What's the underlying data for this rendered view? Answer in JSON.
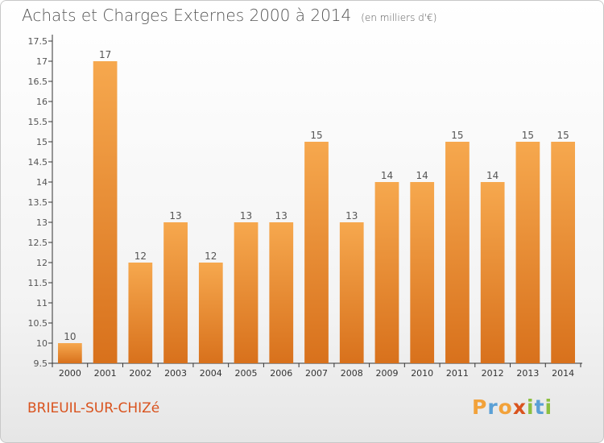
{
  "header": {
    "title": "Achats et Charges Externes 2000 à 2014",
    "unit": "(en milliers d'€)"
  },
  "commune": "BRIEUIL-SUR-CHIZé",
  "logo": {
    "text": "Proxiti",
    "letters": [
      {
        "ch": "P",
        "color": "#f2a23a"
      },
      {
        "ch": "r",
        "color": "#5aa0d6"
      },
      {
        "ch": "o",
        "color": "#f2a23a"
      },
      {
        "ch": "x",
        "color": "#d9531e"
      },
      {
        "ch": "i",
        "color": "#8cbf3f"
      },
      {
        "ch": "t",
        "color": "#5aa0d6"
      },
      {
        "ch": "i",
        "color": "#8cbf3f"
      }
    ]
  },
  "chart_data": {
    "type": "bar",
    "categories": [
      "2000",
      "2001",
      "2002",
      "2003",
      "2004",
      "2005",
      "2006",
      "2007",
      "2008",
      "2009",
      "2010",
      "2011",
      "2012",
      "2013",
      "2014"
    ],
    "values": [
      10,
      17,
      12,
      13,
      12,
      13,
      13,
      15,
      13,
      14,
      14,
      15,
      14,
      15,
      15
    ],
    "value_labels": [
      "10",
      "17",
      "12",
      "13",
      "12",
      "13",
      "13",
      "15",
      "13",
      "14",
      "14",
      "15",
      "14",
      "15",
      "15"
    ],
    "yticks": [
      9.5,
      10,
      10.5,
      11,
      11.5,
      12,
      12.5,
      13,
      13.5,
      14,
      14.5,
      15,
      15.5,
      16,
      16.5,
      17,
      17.5
    ],
    "ylim": [
      9.5,
      17.5
    ],
    "title": "Achats et Charges Externes 2000 à 2014",
    "xlabel": "",
    "ylabel": "",
    "grid": false,
    "colors": {
      "bar_top": "#f6a84e",
      "bar_bottom": "#d8711c",
      "axis": "#333333",
      "text": "#555555"
    }
  }
}
